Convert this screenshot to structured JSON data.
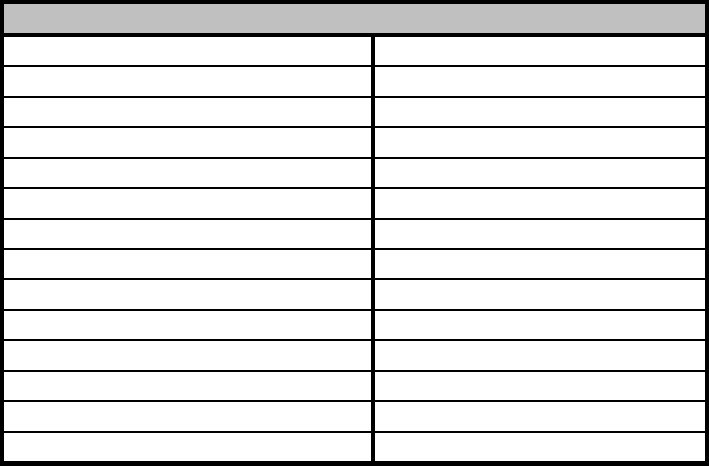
{
  "colors": {
    "border": "#000000",
    "header": "#c0c0c0",
    "cell": "#ffffff"
  },
  "table": {
    "header": "",
    "rows": [
      [
        "",
        ""
      ],
      [
        "",
        ""
      ],
      [
        "",
        ""
      ],
      [
        "",
        ""
      ],
      [
        "",
        ""
      ],
      [
        "",
        ""
      ],
      [
        "",
        ""
      ],
      [
        "",
        ""
      ],
      [
        "",
        ""
      ],
      [
        "",
        ""
      ],
      [
        "",
        ""
      ],
      [
        "",
        ""
      ],
      [
        "",
        ""
      ],
      [
        "",
        ""
      ]
    ]
  }
}
